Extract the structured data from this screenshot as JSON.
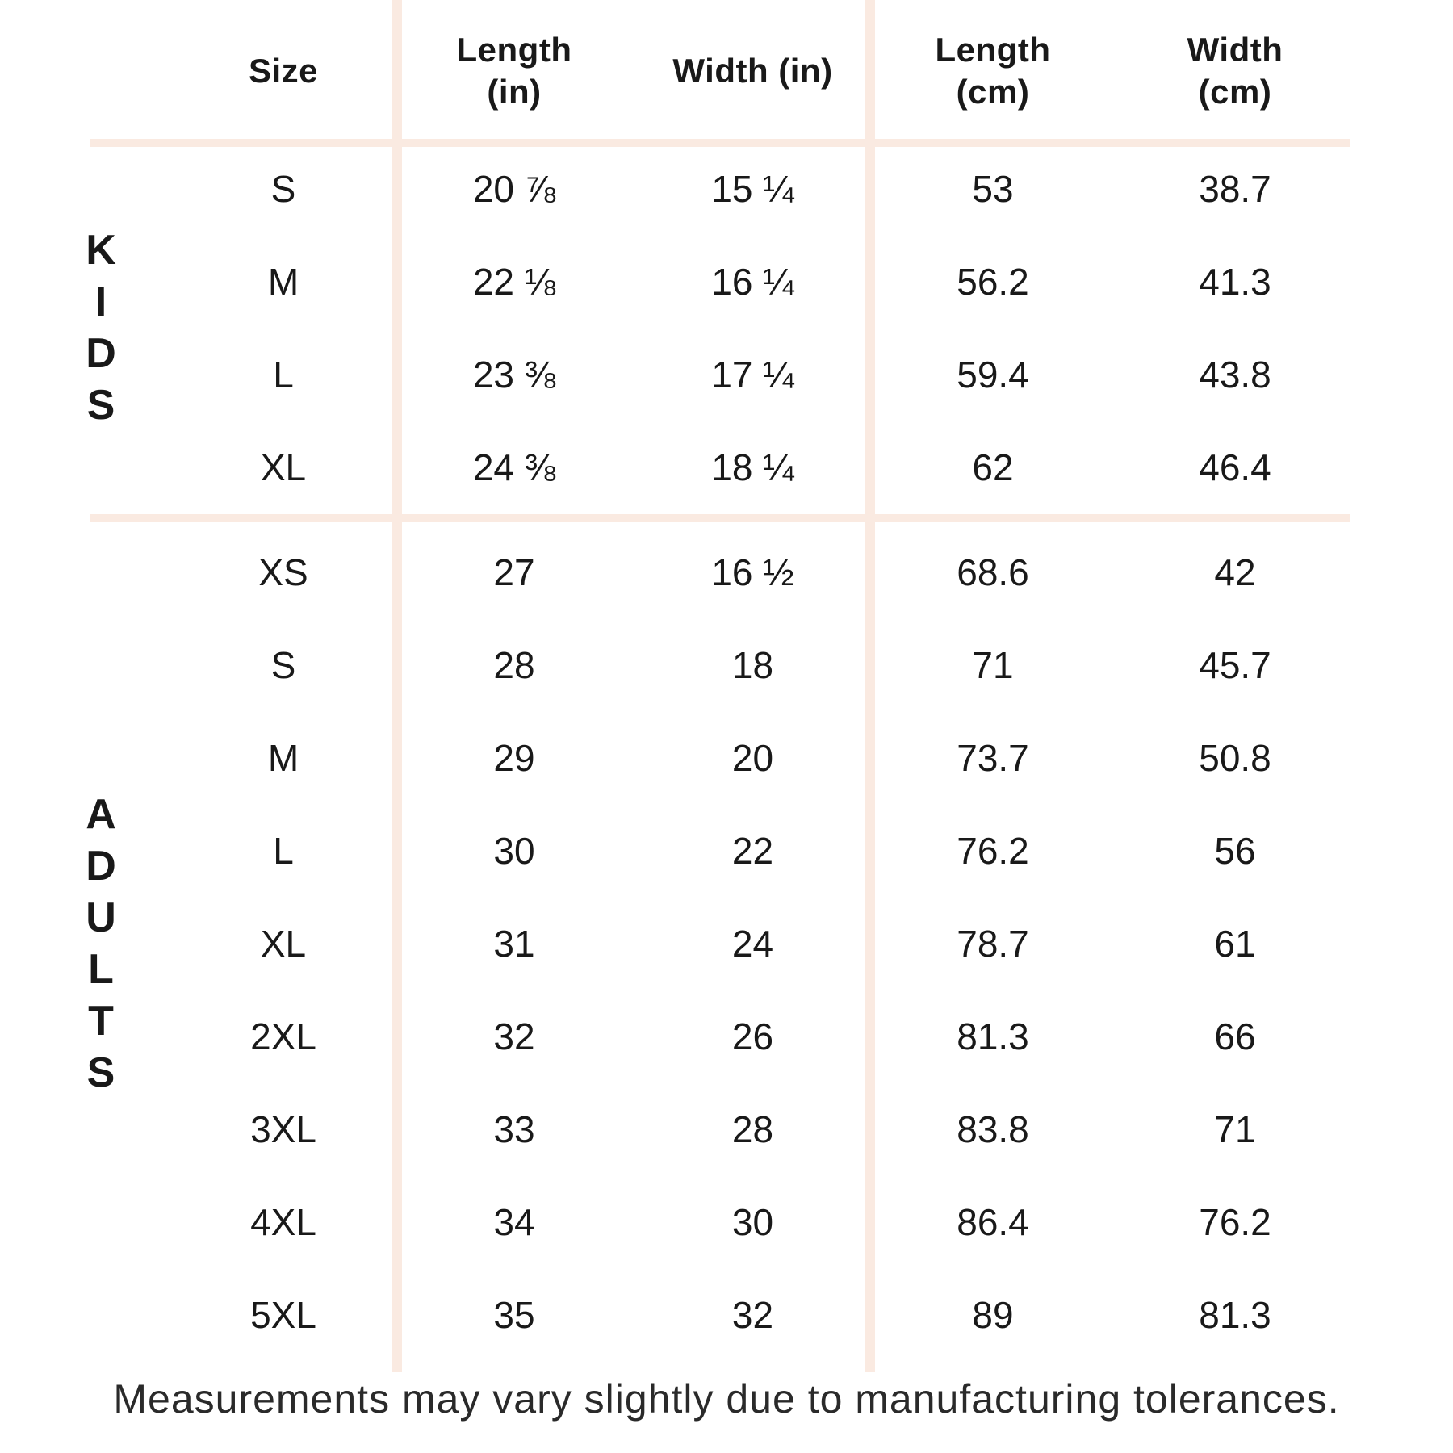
{
  "chart_data": {
    "type": "table",
    "columns": [
      "Size",
      "Length (in)",
      "Width (in)",
      "Length (cm)",
      "Width (cm)"
    ],
    "header_display": {
      "size": "Size",
      "length_in": "Length\n(in)",
      "width_in": "Width (in)",
      "length_cm": "Length\n(cm)",
      "width_cm": "Width\n(cm)"
    },
    "row_groups": [
      {
        "label": "KIDS",
        "rows": [
          {
            "size": "S",
            "length_in": "20 ⅞",
            "width_in": "15 ¼",
            "length_cm": "53",
            "width_cm": "38.7"
          },
          {
            "size": "M",
            "length_in": "22 ⅛",
            "width_in": "16 ¼",
            "length_cm": "56.2",
            "width_cm": "41.3"
          },
          {
            "size": "L",
            "length_in": "23 ⅜",
            "width_in": "17 ¼",
            "length_cm": "59.4",
            "width_cm": "43.8"
          },
          {
            "size": "XL",
            "length_in": "24 ⅜",
            "width_in": "18 ¼",
            "length_cm": "62",
            "width_cm": "46.4"
          }
        ]
      },
      {
        "label": "ADULTS",
        "rows": [
          {
            "size": "XS",
            "length_in": "27",
            "width_in": "16 ½",
            "length_cm": "68.6",
            "width_cm": "42"
          },
          {
            "size": "S",
            "length_in": "28",
            "width_in": "18",
            "length_cm": "71",
            "width_cm": "45.7"
          },
          {
            "size": "M",
            "length_in": "29",
            "width_in": "20",
            "length_cm": "73.7",
            "width_cm": "50.8"
          },
          {
            "size": "L",
            "length_in": "30",
            "width_in": "22",
            "length_cm": "76.2",
            "width_cm": "56"
          },
          {
            "size": "XL",
            "length_in": "31",
            "width_in": "24",
            "length_cm": "78.7",
            "width_cm": "61"
          },
          {
            "size": "2XL",
            "length_in": "32",
            "width_in": "26",
            "length_cm": "81.3",
            "width_cm": "66"
          },
          {
            "size": "3XL",
            "length_in": "33",
            "width_in": "28",
            "length_cm": "83.8",
            "width_cm": "71"
          },
          {
            "size": "4XL",
            "length_in": "34",
            "width_in": "30",
            "length_cm": "86.4",
            "width_cm": "76.2"
          },
          {
            "size": "5XL",
            "length_in": "35",
            "width_in": "32",
            "length_cm": "89",
            "width_cm": "81.3"
          }
        ]
      }
    ]
  },
  "footer": {
    "note": "Measurements may vary slightly due to manufacturing tolerances."
  },
  "colors": {
    "divider": "#faeae1",
    "text": "#191919"
  }
}
